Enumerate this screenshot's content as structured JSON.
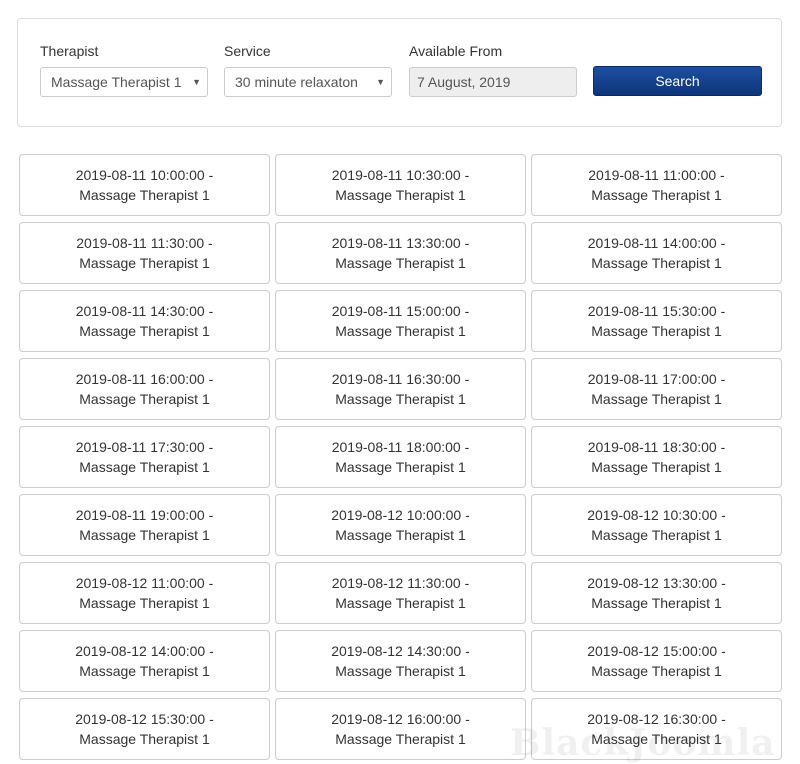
{
  "form": {
    "therapist": {
      "label": "Therapist",
      "value": "Massage Therapist 1"
    },
    "service": {
      "label": "Service",
      "value": "30 minute relaxaton"
    },
    "available_from": {
      "label": "Available From",
      "value": "7 August, 2019"
    },
    "search_label": "Search",
    "dropdown_icon": "triangle-down"
  },
  "colors": {
    "button": "#143f8c"
  },
  "slots": [
    {
      "time": "2019-08-11 10:00:00 -",
      "therapist": "Massage Therapist 1"
    },
    {
      "time": "2019-08-11 10:30:00 -",
      "therapist": "Massage Therapist 1"
    },
    {
      "time": "2019-08-11 11:00:00 -",
      "therapist": "Massage Therapist 1"
    },
    {
      "time": "2019-08-11 11:30:00 -",
      "therapist": "Massage Therapist 1"
    },
    {
      "time": "2019-08-11 13:30:00 -",
      "therapist": "Massage Therapist 1"
    },
    {
      "time": "2019-08-11 14:00:00 -",
      "therapist": "Massage Therapist 1"
    },
    {
      "time": "2019-08-11 14:30:00 -",
      "therapist": "Massage Therapist 1"
    },
    {
      "time": "2019-08-11 15:00:00 -",
      "therapist": "Massage Therapist 1"
    },
    {
      "time": "2019-08-11 15:30:00 -",
      "therapist": "Massage Therapist 1"
    },
    {
      "time": "2019-08-11 16:00:00 -",
      "therapist": "Massage Therapist 1"
    },
    {
      "time": "2019-08-11 16:30:00 -",
      "therapist": "Massage Therapist 1"
    },
    {
      "time": "2019-08-11 17:00:00 -",
      "therapist": "Massage Therapist 1"
    },
    {
      "time": "2019-08-11 17:30:00 -",
      "therapist": "Massage Therapist 1"
    },
    {
      "time": "2019-08-11 18:00:00 -",
      "therapist": "Massage Therapist 1"
    },
    {
      "time": "2019-08-11 18:30:00 -",
      "therapist": "Massage Therapist 1"
    },
    {
      "time": "2019-08-11 19:00:00 -",
      "therapist": "Massage Therapist 1"
    },
    {
      "time": "2019-08-12 10:00:00 -",
      "therapist": "Massage Therapist 1"
    },
    {
      "time": "2019-08-12 10:30:00 -",
      "therapist": "Massage Therapist 1"
    },
    {
      "time": "2019-08-12 11:00:00 -",
      "therapist": "Massage Therapist 1"
    },
    {
      "time": "2019-08-12 11:30:00 -",
      "therapist": "Massage Therapist 1"
    },
    {
      "time": "2019-08-12 13:30:00 -",
      "therapist": "Massage Therapist 1"
    },
    {
      "time": "2019-08-12 14:00:00 -",
      "therapist": "Massage Therapist 1"
    },
    {
      "time": "2019-08-12 14:30:00 -",
      "therapist": "Massage Therapist 1"
    },
    {
      "time": "2019-08-12 15:00:00 -",
      "therapist": "Massage Therapist 1"
    },
    {
      "time": "2019-08-12 15:30:00 -",
      "therapist": "Massage Therapist 1"
    },
    {
      "time": "2019-08-12 16:00:00 -",
      "therapist": "Massage Therapist 1"
    },
    {
      "time": "2019-08-12 16:30:00 -",
      "therapist": "Massage Therapist 1"
    }
  ],
  "watermark": "BlackJoomla"
}
